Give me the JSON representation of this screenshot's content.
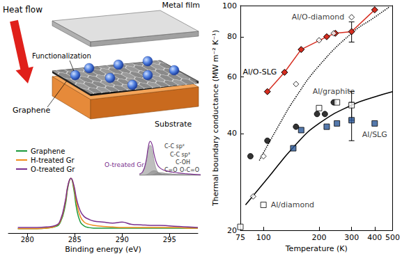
{
  "diagram": {
    "labels": {
      "heat_flow": "Heat flow",
      "metal_film": "Metal film",
      "functionalization": "Functionalization",
      "graphene": "Graphene",
      "substrate": "Substrate"
    }
  },
  "chart_data": [
    {
      "type": "line",
      "x_label": "Binding energy (eV)",
      "x": [
        279,
        280,
        281,
        282,
        283,
        283.5,
        284,
        284.3,
        284.6,
        284.9,
        285.2,
        285.6,
        286,
        286.5,
        287,
        288,
        289,
        290,
        291,
        292,
        293,
        294,
        295,
        296,
        297,
        298
      ],
      "series": [
        {
          "name": "Graphene",
          "color": "#1a9a3a",
          "values": [
            0.08,
            0.08,
            0.08,
            0.09,
            0.12,
            0.2,
            0.5,
            0.85,
            1.0,
            0.8,
            0.45,
            0.2,
            0.13,
            0.1,
            0.09,
            0.09,
            0.09,
            0.09,
            0.09,
            0.09,
            0.09,
            0.09,
            0.09,
            0.09,
            0.09,
            0.09
          ]
        },
        {
          "name": "H-treated Gr",
          "color": "#f08c1c",
          "values": [
            0.08,
            0.08,
            0.08,
            0.09,
            0.13,
            0.22,
            0.55,
            0.87,
            1.0,
            0.85,
            0.55,
            0.3,
            0.2,
            0.16,
            0.14,
            0.12,
            0.11,
            0.1,
            0.1,
            0.1,
            0.1,
            0.1,
            0.1,
            0.1,
            0.09,
            0.09
          ]
        },
        {
          "name": "O-treated Gr",
          "color": "#7a2f8e",
          "values": [
            0.1,
            0.1,
            0.1,
            0.11,
            0.14,
            0.24,
            0.58,
            0.88,
            1.0,
            0.88,
            0.62,
            0.4,
            0.3,
            0.25,
            0.22,
            0.2,
            0.18,
            0.2,
            0.16,
            0.15,
            0.14,
            0.14,
            0.13,
            0.12,
            0.11,
            0.1
          ]
        }
      ],
      "xlim": [
        278,
        298
      ],
      "xticks": [
        280,
        285,
        290,
        295
      ],
      "ylim": [
        0,
        1.65
      ],
      "tick_labels": "x",
      "grid": false,
      "legend": "upper left",
      "inset": {
        "title": "O-treated Gr",
        "x": [
          283,
          283.5,
          284,
          284.3,
          284.6,
          284.9,
          285.2,
          285.6,
          286,
          286.5,
          287,
          287.5,
          288,
          289,
          290,
          291,
          292
        ],
        "envelope": [
          0.04,
          0.12,
          0.49,
          0.92,
          1.13,
          1.0,
          0.66,
          0.37,
          0.25,
          0.18,
          0.15,
          0.12,
          0.1,
          0.07,
          0.05,
          0.03,
          0.02
        ],
        "color": "#7a2f8e",
        "components": [
          {
            "label": "C-C sp²",
            "values": [
              0.02,
              0.1,
              0.45,
              0.85,
              1.0,
              0.82,
              0.45,
              0.15,
              0.05,
              0.01,
              0,
              0,
              0,
              0,
              0,
              0,
              0
            ]
          },
          {
            "label": "C-C sp³",
            "values": [
              0,
              0,
              0.02,
              0.05,
              0.1,
              0.14,
              0.15,
              0.12,
              0.07,
              0.03,
              0.01,
              0,
              0,
              0,
              0,
              0,
              0
            ]
          },
          {
            "label": "C-OH",
            "values": [
              0,
              0,
              0,
              0,
              0.01,
              0.02,
              0.04,
              0.07,
              0.09,
              0.08,
              0.05,
              0.02,
              0.01,
              0,
              0,
              0,
              0
            ]
          },
          {
            "label": "C=O",
            "values": [
              0,
              0,
              0,
              0,
              0,
              0,
              0,
              0.01,
              0.02,
              0.04,
              0.06,
              0.06,
              0.04,
              0.01,
              0,
              0,
              0
            ]
          },
          {
            "label": "O-C=O",
            "values": [
              0,
              0,
              0,
              0,
              0,
              0,
              0,
              0,
              0,
              0,
              0.01,
              0.02,
              0.03,
              0.04,
              0.03,
              0.01,
              0
            ]
          }
        ],
        "components_color": "#888888",
        "xlim": [
          283,
          292
        ],
        "ylim": [
          0,
          1.2
        ]
      }
    },
    {
      "type": "scatter",
      "x_label": "Temperature (K)",
      "y_label": "Thermal boundary conductance (MW m⁻² K⁻¹)",
      "log": true,
      "grid": false,
      "xlim": [
        75,
        500
      ],
      "xticks": [
        75,
        100,
        200,
        300,
        400,
        500
      ],
      "ylim": [
        20,
        100
      ],
      "yticks": [
        20,
        40,
        60,
        80,
        100
      ],
      "series": [
        {
          "name": "Al/O-diamond",
          "type": "scatter",
          "marker": "diamond-open",
          "color": "#000000",
          "x": [
            88,
            100,
            150,
            200,
            240,
            300
          ],
          "values": [
            25.5,
            34,
            57,
            78,
            82,
            92
          ]
        },
        {
          "name": "Al/O-SLG",
          "type": "line",
          "marker": "diamond",
          "line_style": "solid",
          "color": "#d62d20",
          "x": [
            105,
            130,
            160,
            220,
            245,
            300,
            400
          ],
          "values": [
            54,
            62,
            73,
            80,
            82,
            83,
            97
          ],
          "errors": [
            null,
            null,
            null,
            null,
            null,
            6,
            null
          ]
        },
        {
          "name": "Al/graphite",
          "type": "scatter",
          "marker": "circle",
          "color": "#000000",
          "x": [
            85,
            105,
            150,
            195,
            215,
            240
          ],
          "values": [
            34,
            38,
            42,
            46,
            46,
            50
          ]
        },
        {
          "name": "Al/diamond",
          "type": "scatter",
          "marker": "square-open",
          "color": "#000000",
          "x": [
            75,
            100,
            200,
            250,
            300
          ],
          "values": [
            20.5,
            24,
            48,
            50,
            49
          ],
          "errors": [
            null,
            null,
            null,
            null,
            5
          ]
        },
        {
          "name": "Al/SLG",
          "type": "scatter",
          "marker": "square",
          "color": "#2b5797",
          "x": [
            145,
            160,
            220,
            250,
            300,
            400
          ],
          "values": [
            36,
            41,
            42,
            43,
            44,
            43
          ],
          "errors": [
            null,
            null,
            null,
            null,
            6,
            null
          ]
        },
        {
          "type": "line",
          "line_style": "dotted",
          "color": "#000000",
          "x": [
            95,
            120,
            150,
            200,
            300,
            400,
            480
          ],
          "values": [
            33,
            42,
            52,
            65,
            82,
            92,
            99
          ]
        },
        {
          "type": "line",
          "line_style": "solid",
          "color": "#000000",
          "x": [
            80,
            100,
            150,
            200,
            300,
            400,
            500
          ],
          "values": [
            24,
            28,
            37,
            43,
            49,
            52,
            54
          ]
        }
      ]
    }
  ]
}
